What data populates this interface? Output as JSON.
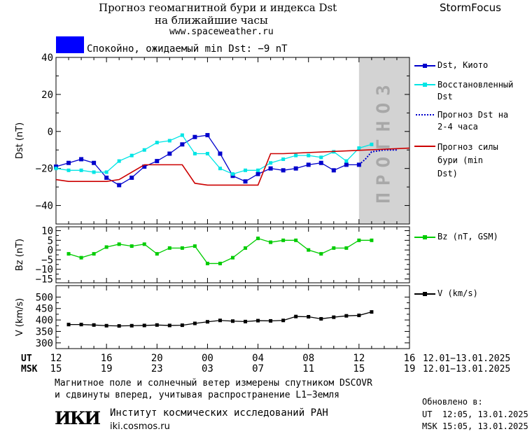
{
  "header": {
    "title_line1": "Прогноз геомагнитной бури и индекса Dst",
    "title_line2": "на ближайшие часы",
    "url": "www.spaceweather.ru",
    "brand": "StormFocus",
    "status_text": "Спокойно, ожидаемый min Dst: −9 nT",
    "status_color": "#0000ff"
  },
  "forecast_band_label": "ПРОГНОЗ",
  "colors": {
    "dst_kyoto": "#0000cc",
    "dst_restored": "#00e5e5",
    "dst_forecast": "#0000cc",
    "storm_forecast": "#cc0000",
    "bz": "#00cc00",
    "v": "#000000",
    "forecast_band": "#d3d3d3"
  },
  "chart_data": [
    {
      "type": "line",
      "ylabel": "Dst (nT)",
      "ylim": [
        -50,
        40
      ],
      "yticks": [
        40,
        20,
        0,
        -20,
        -40
      ],
      "xlim": [
        0,
        28
      ],
      "forecast_band_x": [
        24,
        28
      ],
      "series": [
        {
          "name": "Dst, Киото",
          "key": "kyoto",
          "x": [
            0,
            1,
            2,
            3,
            4,
            5,
            6,
            7,
            8,
            9,
            10,
            11,
            12,
            13,
            14,
            15,
            16,
            17,
            18,
            19,
            20,
            21,
            22,
            23,
            24
          ],
          "y": [
            -19,
            -17,
            -15,
            -17,
            -25,
            -29,
            -25,
            -19,
            -16,
            -12,
            -7,
            -3,
            -2,
            -12,
            -24,
            -27,
            -23,
            -20,
            -21,
            -20,
            -18,
            -17,
            -21,
            -18,
            -18
          ]
        },
        {
          "name": "Восстановленный Dst",
          "key": "restored",
          "x": [
            0,
            1,
            2,
            3,
            4,
            5,
            6,
            7,
            8,
            9,
            10,
            11,
            12,
            13,
            14,
            15,
            16,
            17,
            18,
            19,
            20,
            21,
            22,
            23,
            24,
            25
          ],
          "y": [
            -20,
            -21,
            -21,
            -22,
            -22,
            -16,
            -13,
            -10,
            -6,
            -5,
            -2,
            -12,
            -12,
            -20,
            -23,
            -21,
            -21,
            -17,
            -15,
            -13,
            -13,
            -14,
            -11,
            -16,
            -9,
            -7
          ]
        },
        {
          "name": "Прогноз Dst на 2-4 часа",
          "key": "forecast",
          "x": [
            24,
            24.5,
            25,
            26,
            27
          ],
          "y": [
            -18,
            -15,
            -11,
            -10,
            -10
          ]
        },
        {
          "name": "Прогноз силы бури (min Dst)",
          "key": "storm",
          "x": [
            0,
            1,
            4,
            5,
            7,
            10,
            11,
            12,
            16,
            17,
            18,
            28
          ],
          "y": [
            -26,
            -27,
            -27,
            -26,
            -18,
            -18,
            -28,
            -29,
            -29,
            -12,
            -12,
            -9
          ]
        }
      ]
    },
    {
      "type": "line",
      "ylabel": "Bz (nT)",
      "ylim": [
        -17,
        12
      ],
      "yticks": [
        10,
        5,
        0,
        -5,
        -10,
        -15
      ],
      "xlim": [
        0,
        28
      ],
      "series": [
        {
          "name": "Bz (nT, GSM)",
          "key": "bz",
          "x": [
            1,
            2,
            3,
            4,
            5,
            6,
            7,
            8,
            9,
            10,
            11,
            12,
            13,
            14,
            15,
            16,
            17,
            18,
            19,
            20,
            21,
            22,
            23,
            24,
            25
          ],
          "y": [
            -2,
            -4,
            -2,
            1.5,
            3,
            2,
            3,
            -2,
            1,
            1,
            2,
            -7,
            -7,
            -4,
            1,
            6,
            4,
            5,
            5,
            0,
            -2,
            1,
            1,
            5,
            5
          ]
        }
      ]
    },
    {
      "type": "line",
      "ylabel": "V (km/s)",
      "ylim": [
        275,
        550
      ],
      "yticks": [
        500,
        450,
        400,
        350,
        300
      ],
      "xlim": [
        0,
        28
      ],
      "series": [
        {
          "name": "V (km/s)",
          "key": "v",
          "x": [
            1,
            2,
            3,
            4,
            5,
            6,
            7,
            8,
            9,
            10,
            11,
            12,
            13,
            14,
            15,
            16,
            17,
            18,
            19,
            20,
            21,
            22,
            23,
            24,
            25
          ],
          "y": [
            380,
            380,
            378,
            375,
            374,
            375,
            376,
            378,
            376,
            377,
            385,
            392,
            398,
            395,
            393,
            397,
            396,
            398,
            415,
            414,
            405,
            412,
            418,
            420,
            435
          ]
        }
      ]
    }
  ],
  "x_axis": {
    "ut_label": "UT",
    "msk_label": "MSK",
    "ut_ticks": [
      "12",
      "16",
      "20",
      "00",
      "04",
      "08",
      "12",
      "16"
    ],
    "msk_ticks": [
      "15",
      "19",
      "23",
      "03",
      "07",
      "11",
      "15",
      "19"
    ],
    "ut_range": "12.01−13.01.2025",
    "msk_range": "12.01−13.01.2025"
  },
  "footer": {
    "note_line1": "Магнитное поле и солнечный ветер измерены спутником DSCOVR",
    "note_line2": "и сдвинуты вперед, учитывая распространение L1−Земля",
    "logo_text": "ИКИ",
    "institute": "Институт космических исследований РАН",
    "site": "iki.cosmos.ru",
    "updated_label": "Обновлено в:",
    "updated_ut": "UT  12:05, 13.01.2025",
    "updated_msk": "MSK 15:05, 13.01.2025"
  }
}
